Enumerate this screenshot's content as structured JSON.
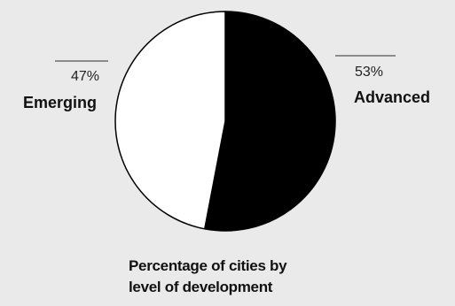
{
  "chart_data": {
    "type": "pie",
    "title": "Percentage of cities by level of development",
    "title_lines": [
      "Percentage of cities by",
      "level of development"
    ],
    "slices": [
      {
        "label": "Advanced",
        "value": 53,
        "value_label": "53%",
        "color": "#000000"
      },
      {
        "label": "Emerging",
        "value": 47,
        "value_label": "47%",
        "color": "#ffffff"
      }
    ],
    "legend": "none",
    "slice_outline_color": "#000000"
  },
  "colors": {
    "background": "#eaeaea",
    "leader_line": "#555555"
  }
}
